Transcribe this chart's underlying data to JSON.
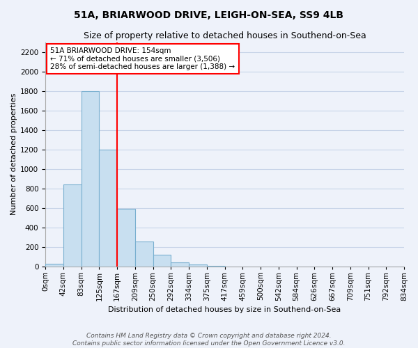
{
  "title": "51A, BRIARWOOD DRIVE, LEIGH-ON-SEA, SS9 4LB",
  "subtitle": "Size of property relative to detached houses in Southend-on-Sea",
  "xlabel": "Distribution of detached houses by size in Southend-on-Sea",
  "ylabel": "Number of detached properties",
  "bin_labels": [
    "0sqm",
    "42sqm",
    "83sqm",
    "125sqm",
    "167sqm",
    "209sqm",
    "250sqm",
    "292sqm",
    "334sqm",
    "375sqm",
    "417sqm",
    "459sqm",
    "500sqm",
    "542sqm",
    "584sqm",
    "626sqm",
    "667sqm",
    "709sqm",
    "751sqm",
    "792sqm",
    "834sqm"
  ],
  "bar_heights": [
    25,
    840,
    1800,
    1200,
    590,
    255,
    120,
    40,
    20,
    5,
    0,
    0,
    0,
    0,
    0,
    0,
    0,
    0,
    0,
    0
  ],
  "bar_color": "#c8dff0",
  "bar_edge_color": "#7ab0d0",
  "vline_x_index": 4,
  "vline_color": "red",
  "annotation_title": "51A BRIARWOOD DRIVE: 154sqm",
  "annotation_line2": "← 71% of detached houses are smaller (3,506)",
  "annotation_line3": "28% of semi-detached houses are larger (1,388) →",
  "annotation_box_color": "white",
  "annotation_box_edge_color": "red",
  "ylim": [
    0,
    2300
  ],
  "yticks": [
    0,
    200,
    400,
    600,
    800,
    1000,
    1200,
    1400,
    1600,
    1800,
    2000,
    2200
  ],
  "footer_line1": "Contains HM Land Registry data © Crown copyright and database right 2024.",
  "footer_line2": "Contains public sector information licensed under the Open Government Licence v3.0.",
  "bg_color": "#eef2fa",
  "grid_color": "#c8d4e8",
  "title_fontsize": 10,
  "subtitle_fontsize": 9,
  "xlabel_fontsize": 8,
  "ylabel_fontsize": 8,
  "tick_fontsize": 7.5,
  "footer_fontsize": 6.5
}
